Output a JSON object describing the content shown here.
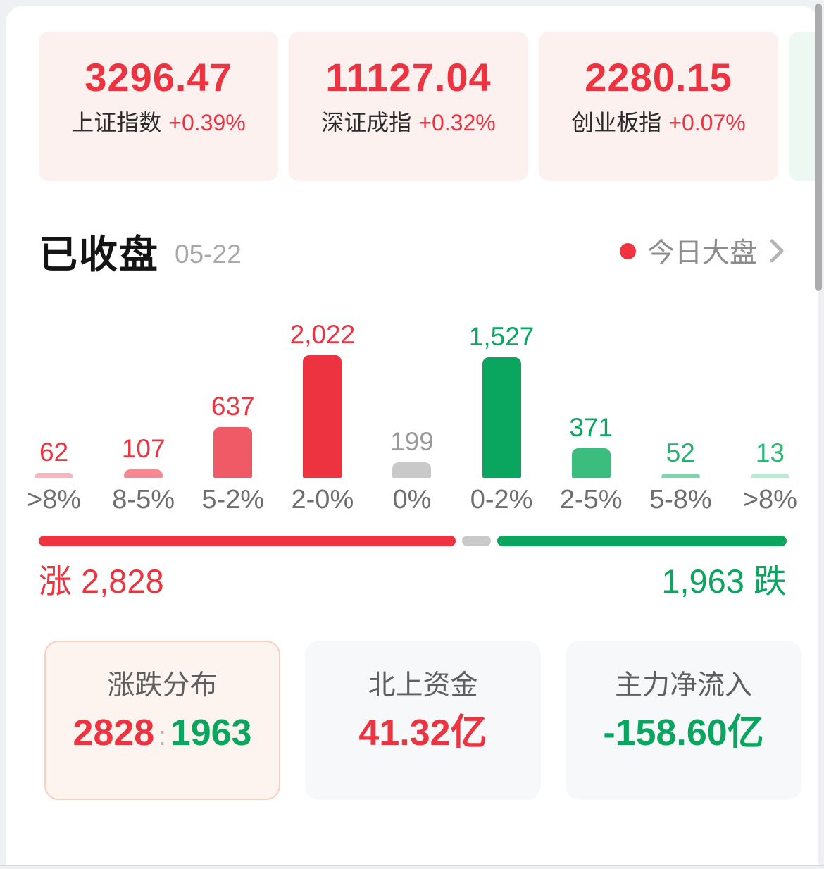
{
  "indices": {
    "cards": [
      {
        "value": "3296.47",
        "label": "上证指数",
        "change": "+0.39%"
      },
      {
        "value": "11127.04",
        "label": "深证成指",
        "change": "+0.32%"
      },
      {
        "value": "2280.15",
        "label": "创业板指",
        "change": "+0.07%"
      },
      {
        "value": "",
        "label": "",
        "change": ""
      }
    ]
  },
  "section": {
    "status": "已收盘",
    "date": "05-22",
    "link": "今日大盘"
  },
  "chart_data": {
    "type": "bar",
    "title": "涨跌分布",
    "categories": [
      ">8%",
      "8-5%",
      "5-2%",
      "2-0%",
      "0%",
      "0-2%",
      "2-5%",
      "5-8%",
      ">8%"
    ],
    "values": [
      62,
      107,
      637,
      2022,
      199,
      1527,
      371,
      52,
      13
    ],
    "value_labels": [
      "62",
      "107",
      "637",
      "2,022",
      "199",
      "1,527",
      "371",
      "52",
      "13"
    ],
    "bar_colors": [
      "#f7b5bd",
      "#f58893",
      "#f05a67",
      "#ee3340",
      "#c9c9c9",
      "#0aa55e",
      "#3cbd80",
      "#82d3a9",
      "#bce8d2"
    ],
    "label_colors": [
      "#ee3340",
      "#ee3340",
      "#ee3340",
      "#ee3340",
      "#9a9a9a",
      "#0aa55e",
      "#0aa55e",
      "#25b271",
      "#2eb674"
    ],
    "xlabel": "",
    "ylabel": "",
    "ylim": [
      0,
      2022
    ],
    "grid": false,
    "legend": false
  },
  "ratio": {
    "up": 2828,
    "flat": 199,
    "down": 1963,
    "up_label": "涨 2,828",
    "down_label": "1,963 跌"
  },
  "summary": {
    "cards": [
      {
        "title": "涨跌分布",
        "up": "2828",
        "sep": ":",
        "down": "1963",
        "selected": true
      },
      {
        "title": "北上资金",
        "value": "41.32亿"
      },
      {
        "title": "主力净流入",
        "value": "-158.60亿"
      }
    ]
  },
  "colors": {
    "red": "#ee3340",
    "green": "#0aa55e",
    "gray_bar": "#c9c9c9",
    "page_bg": "#eef0f4",
    "index_card_bg": "#fdf1f0",
    "index_card_green_bg": "#edf8f2",
    "summary_card_bg": "#f7f8fa",
    "summary_selected_bg": "#fdf3ef",
    "summary_selected_border": "#f6d0c3"
  }
}
